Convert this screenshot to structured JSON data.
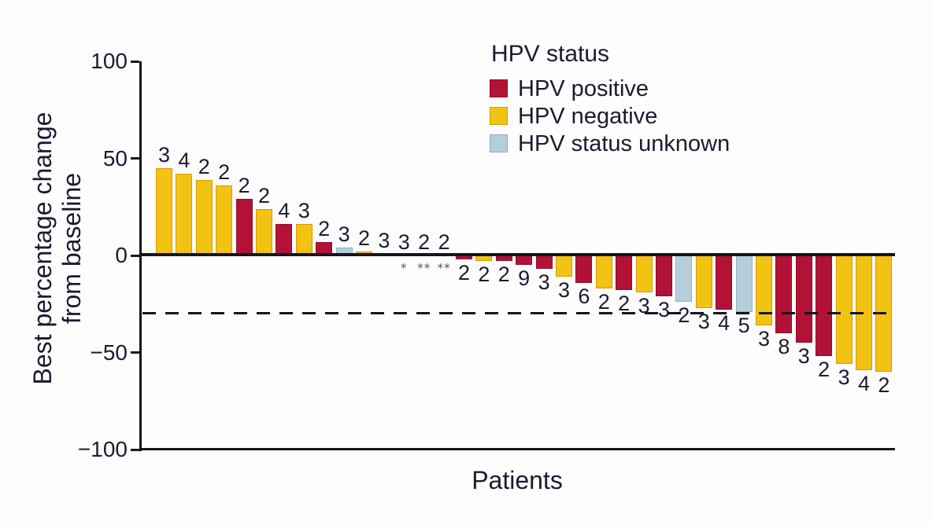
{
  "figure": {
    "y_axis": {
      "title_lines": [
        "Best percentage change",
        "from baseline"
      ],
      "ticks": [
        100,
        50,
        0,
        -50,
        -100
      ]
    },
    "x_axis": {
      "title": "Patients"
    },
    "legend": {
      "title": "HPV status",
      "items": [
        {
          "label": "HPV positive",
          "color": "#b11235"
        },
        {
          "label": "HPV negative",
          "color": "#f3c313"
        },
        {
          "label": "HPV status unknown",
          "color": "#b5cfda"
        }
      ]
    }
  },
  "chart_data": {
    "type": "bar",
    "title": "",
    "xlabel": "Patients",
    "ylabel": "Best percentage change from baseline",
    "ylim": [
      -100,
      100
    ],
    "yticks": [
      100,
      50,
      0,
      -50,
      -100
    ],
    "grid": false,
    "legend_position": "top-center",
    "reference_line_y": -30,
    "reference_line_style": "dashed",
    "marker_color": "#50506e",
    "groups": {
      "HPV positive": {
        "fill": "#b11235",
        "border": "#8c0e2a"
      },
      "HPV negative": {
        "fill": "#f3c313",
        "border": "#d79a00"
      },
      "HPV status unknown": {
        "fill": "#b5cfda",
        "border": "#95b4c1"
      }
    },
    "bars": [
      {
        "value": 45,
        "label": "3",
        "group": "HPV negative"
      },
      {
        "value": 42,
        "label": "4",
        "group": "HPV negative"
      },
      {
        "value": 39,
        "label": "2",
        "group": "HPV negative"
      },
      {
        "value": 36,
        "label": "2",
        "group": "HPV negative"
      },
      {
        "value": 29,
        "label": "2",
        "group": "HPV positive"
      },
      {
        "value": 24,
        "label": "2",
        "group": "HPV negative"
      },
      {
        "value": 16,
        "label": "4",
        "group": "HPV positive"
      },
      {
        "value": 16,
        "label": "3",
        "group": "HPV negative"
      },
      {
        "value": 7,
        "label": "2",
        "group": "HPV positive"
      },
      {
        "value": 4,
        "label": "3",
        "group": "HPV status unknown"
      },
      {
        "value": 2,
        "label": "2",
        "group": "HPV negative"
      },
      {
        "value": 1,
        "label": "3",
        "group": "HPV positive"
      },
      {
        "value": 0,
        "label": "3",
        "group": null,
        "marker": "*"
      },
      {
        "value": 0,
        "label": "2",
        "group": null,
        "marker": "**"
      },
      {
        "value": 0,
        "label": "2",
        "group": null,
        "marker": "**"
      },
      {
        "value": -2,
        "label": "2",
        "group": "HPV positive"
      },
      {
        "value": -3,
        "label": "2",
        "group": "HPV negative"
      },
      {
        "value": -3,
        "label": "2",
        "group": "HPV positive"
      },
      {
        "value": -5,
        "label": "9",
        "group": "HPV positive"
      },
      {
        "value": -7,
        "label": "3",
        "group": "HPV positive"
      },
      {
        "value": -11,
        "label": "3",
        "group": "HPV negative"
      },
      {
        "value": -14,
        "label": "6",
        "group": "HPV positive"
      },
      {
        "value": -17,
        "label": "2",
        "group": "HPV negative"
      },
      {
        "value": -18,
        "label": "2",
        "group": "HPV positive"
      },
      {
        "value": -19,
        "label": "3",
        "group": "HPV negative"
      },
      {
        "value": -21,
        "label": "3",
        "group": "HPV positive"
      },
      {
        "value": -24,
        "label": "2",
        "group": "HPV status unknown"
      },
      {
        "value": -27,
        "label": "3",
        "group": "HPV negative"
      },
      {
        "value": -28,
        "label": "4",
        "group": "HPV positive"
      },
      {
        "value": -29,
        "label": "5",
        "group": "HPV status unknown"
      },
      {
        "value": -36,
        "label": "3",
        "group": "HPV negative"
      },
      {
        "value": -40,
        "label": "8",
        "group": "HPV positive"
      },
      {
        "value": -45,
        "label": "3",
        "group": "HPV positive"
      },
      {
        "value": -52,
        "label": "2",
        "group": "HPV positive"
      },
      {
        "value": -56,
        "label": "3",
        "group": "HPV negative"
      },
      {
        "value": -59,
        "label": "4",
        "group": "HPV negative"
      },
      {
        "value": -60,
        "label": "2",
        "group": "HPV negative"
      }
    ]
  }
}
